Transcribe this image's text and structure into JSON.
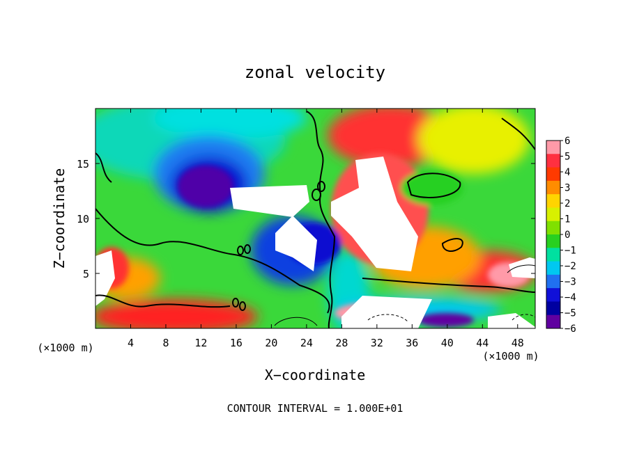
{
  "chart_data": {
    "type": "heatmap",
    "title": "zonal velocity",
    "xlabel": "X−coordinate",
    "ylabel": "Z−coordinate",
    "x_unit_left": "(×1000 m)",
    "x_unit_right": "(×1000 m)",
    "footer": "CONTOUR INTERVAL = 1.000E+01",
    "xlim": [
      0,
      50
    ],
    "ylim": [
      0,
      20
    ],
    "x_ticks": [
      "4",
      "8",
      "12",
      "16",
      "20",
      "24",
      "28",
      "32",
      "36",
      "40",
      "44",
      "48"
    ],
    "x_tick_values": [
      4,
      8,
      12,
      16,
      20,
      24,
      28,
      32,
      36,
      40,
      44,
      48
    ],
    "y_ticks": [
      "5",
      "10",
      "15"
    ],
    "y_tick_values": [
      5,
      10,
      15
    ],
    "colorbar": {
      "labels": [
        "6",
        "5",
        "4",
        "3",
        "2",
        "1",
        "0",
        "−1",
        "−2",
        "−3",
        "−4",
        "−5",
        "−6"
      ],
      "values": [
        6,
        5,
        4,
        3,
        2,
        1,
        0,
        -1,
        -2,
        -3,
        -4,
        -5,
        -6
      ],
      "colors": [
        "#ff9aa8",
        "#ff3040",
        "#ff3a00",
        "#ff8c00",
        "#ffd400",
        "#d8f000",
        "#80e000",
        "#28d020",
        "#00e0a0",
        "#00c8f0",
        "#2070f0",
        "#1010d8",
        "#0000a0",
        "#6000a0"
      ]
    }
  }
}
